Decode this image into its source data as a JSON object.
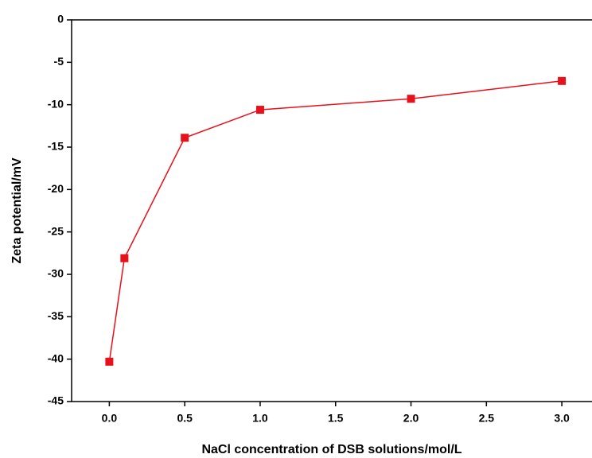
{
  "chart_data": {
    "type": "line",
    "x_label": "NaCl concentration of DSB solutions/mol/L",
    "y_label": "Zeta potential/mV",
    "x": [
      0,
      0.1,
      0.5,
      1.0,
      2.0,
      3.0
    ],
    "series": [
      {
        "color": "#e8101a",
        "values": [
          -40.3,
          -28.1,
          -13.9,
          -10.6,
          -9.3,
          -7.2
        ]
      }
    ],
    "xlim": [
      -0.25,
      3.2
    ],
    "ylim": [
      -45,
      0
    ],
    "xticks": [
      {
        "value": 0,
        "label": "0.0"
      },
      {
        "value": 0.5,
        "label": "0.5"
      },
      {
        "value": 1,
        "label": "1.0"
      },
      {
        "value": 1.5,
        "label": "1.5"
      },
      {
        "value": 2,
        "label": "2.0"
      },
      {
        "value": 2.5,
        "label": "2.5"
      },
      {
        "value": 3,
        "label": "3.0"
      }
    ],
    "yticks": [
      0,
      -5,
      -10,
      -15,
      -20,
      -25,
      -30,
      -35,
      -40,
      -45
    ]
  }
}
